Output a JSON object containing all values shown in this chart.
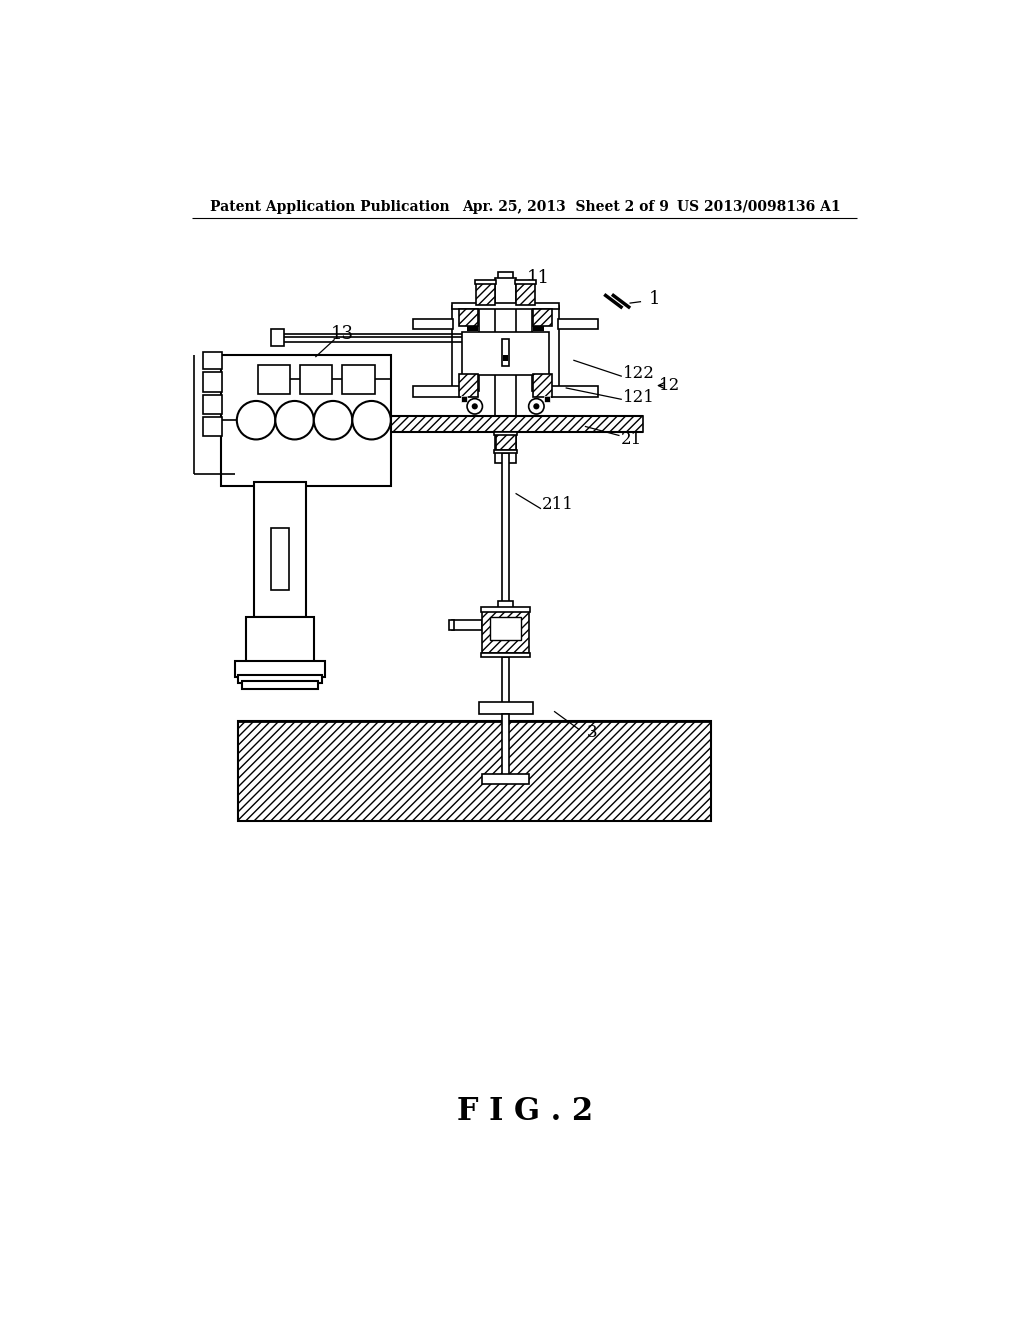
{
  "title": "F I G . 2",
  "header_left": "Patent Application Publication",
  "header_center": "Apr. 25, 2013  Sheet 2 of 9",
  "header_right": "US 2013/0098136 A1",
  "background_color": "#ffffff"
}
